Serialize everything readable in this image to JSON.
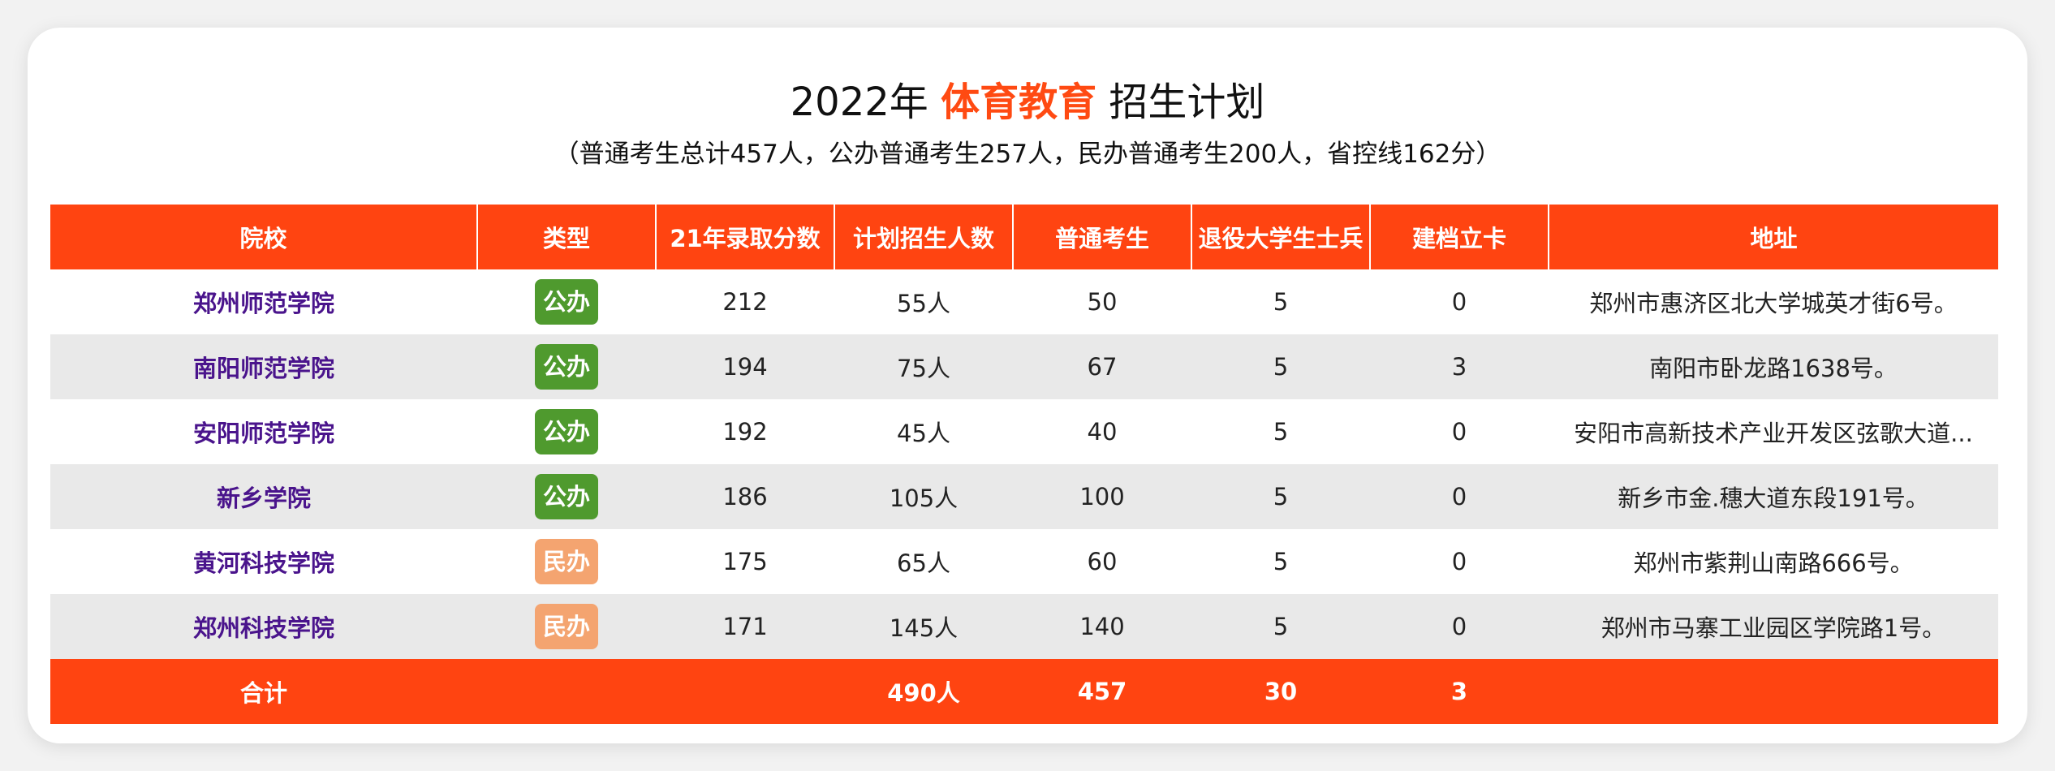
{
  "title": {
    "prefix": "2022年",
    "highlight": "体育教育",
    "suffix": "招生计划"
  },
  "subtitle": "（普通考生总计457人，公办普通考生257人，民办普通考生200人，省控线162分）",
  "colors": {
    "accent": "#ff4411",
    "public_badge": "#4f9a2e",
    "private_badge": "#f4a470",
    "school_text": "#4a148c",
    "striped_row": "#e9e9e9"
  },
  "table": {
    "headers": [
      "院校",
      "类型",
      "21年录取分数",
      "计划招生人数",
      "普通考生",
      "退役大学生士兵",
      "建档立卡",
      "地址"
    ],
    "rows": [
      {
        "school": "郑州师范学院",
        "type": "公办",
        "type_kind": "public",
        "score": "212",
        "plan": "55人",
        "regular": "50",
        "veteran": "5",
        "poverty": "0",
        "address": "郑州市惠济区北大学城英才街6号。"
      },
      {
        "school": "南阳师范学院",
        "type": "公办",
        "type_kind": "public",
        "score": "194",
        "plan": "75人",
        "regular": "67",
        "veteran": "5",
        "poverty": "3",
        "address": "南阳市卧龙路1638号。"
      },
      {
        "school": "安阳师范学院",
        "type": "公办",
        "type_kind": "public",
        "score": "192",
        "plan": "45人",
        "regular": "40",
        "veteran": "5",
        "poverty": "0",
        "address": "安阳市高新技术产业开发区弦歌大道..."
      },
      {
        "school": "新乡学院",
        "type": "公办",
        "type_kind": "public",
        "score": "186",
        "plan": "105人",
        "regular": "100",
        "veteran": "5",
        "poverty": "0",
        "address": "新乡市金.穗大道东段191号。"
      },
      {
        "school": "黄河科技学院",
        "type": "民办",
        "type_kind": "private",
        "score": "175",
        "plan": "65人",
        "regular": "60",
        "veteran": "5",
        "poverty": "0",
        "address": "郑州市紫荆山南路666号。"
      },
      {
        "school": "郑州科技学院",
        "type": "民办",
        "type_kind": "private",
        "score": "171",
        "plan": "145人",
        "regular": "140",
        "veteran": "5",
        "poverty": "0",
        "address": "郑州市马寨工业园区学院路1号。"
      }
    ],
    "total": {
      "label": "合计",
      "type": "",
      "score": "",
      "plan": "490人",
      "regular": "457",
      "veteran": "30",
      "poverty": "3",
      "address": ""
    }
  }
}
